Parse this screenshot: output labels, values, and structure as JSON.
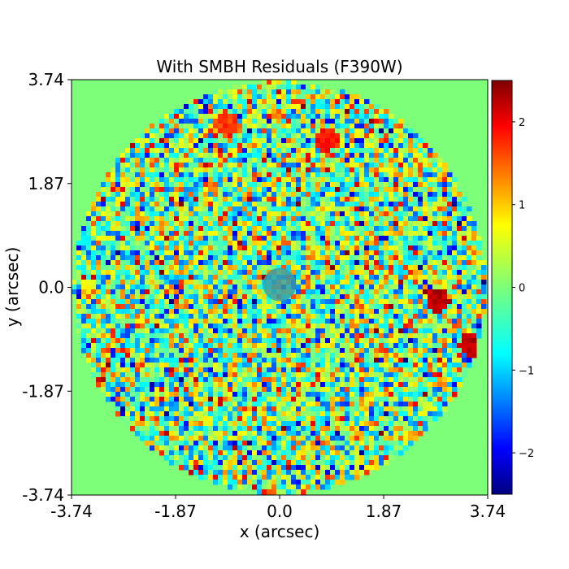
{
  "chart_data": {
    "type": "heatmap",
    "title": "With SMBH Residuals (F390W)",
    "xlabel": "x (arcsec)",
    "ylabel": "y (arcsec)",
    "xlim": [
      -3.74,
      3.74
    ],
    "ylim": [
      -3.74,
      3.74
    ],
    "xticks": [
      -3.74,
      -1.87,
      0.0,
      1.87,
      3.74
    ],
    "xtick_labels": [
      "-3.74",
      "-1.87",
      "0.0",
      "1.87",
      "3.74"
    ],
    "yticks": [
      -3.74,
      -1.87,
      0.0,
      1.87,
      3.74
    ],
    "ytick_labels": [
      "-3.74",
      "-1.87",
      "0.0",
      "1.87",
      "3.74"
    ],
    "colormap": "jet",
    "color_range": [
      -2.5,
      2.5
    ],
    "background_value": 0,
    "colorbar_ticks": [
      -2,
      -1,
      0,
      1,
      2
    ],
    "colorbar_tick_labels": [
      "−2",
      "−1",
      "0",
      "1",
      "2"
    ],
    "colorbar_position": "right",
    "data_region": {
      "shape": "circle",
      "center": [
        0.0,
        0.0
      ],
      "radius": 3.7
    },
    "masked_center": {
      "shape": "circle",
      "center": [
        0.0,
        0.05
      ],
      "radius": 0.3,
      "color": "#3aa0a8"
    },
    "features": [
      {
        "x": 2.8,
        "y": -0.2,
        "value": 2.4
      },
      {
        "x": 3.4,
        "y": -1.0,
        "value": 2.4
      },
      {
        "x": 0.8,
        "y": 2.7,
        "value": 2.0
      },
      {
        "x": -1.0,
        "y": 3.0,
        "value": 1.8
      }
    ],
    "grid": false
  }
}
